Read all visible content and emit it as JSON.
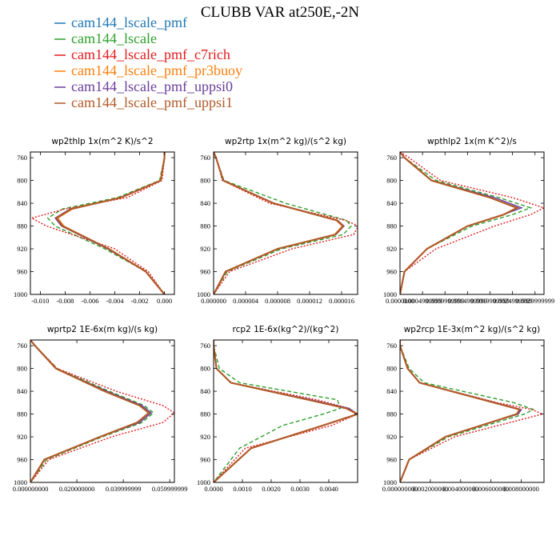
{
  "figure": {
    "title": "CLUBB VAR at250E,-2N"
  },
  "legend": [
    {
      "name": "cam144_lscale_pmf",
      "color": "#1f77b4",
      "dash": "solid"
    },
    {
      "name": "cam144_lscale",
      "color": "#2ca02c",
      "dash": "dashed"
    },
    {
      "name": "cam144_lscale_pmf_c7rich",
      "color": "#e31a1c",
      "dash": "dotted"
    },
    {
      "name": "cam144_lscale_pmf_pr3buoy",
      "color": "#ff7f0e",
      "dash": "solid"
    },
    {
      "name": "cam144_lscale_pmf_uppsi0",
      "color": "#6a3d9a",
      "dash": "solid"
    },
    {
      "name": "cam144_lscale_pmf_uppsi1",
      "color": "#b15928",
      "dash": "solid"
    }
  ],
  "chart_data": [
    {
      "type": "line",
      "title": "wp2thlp  1x(m^2 K)/s^2",
      "ylim": [
        1000,
        750
      ],
      "yticks": [
        "760",
        "800",
        "840",
        "880",
        "920",
        "960",
        "1000"
      ],
      "xlim": [
        -0.0108,
        0.0008
      ],
      "xticks": [
        "-0.010",
        "-0.008",
        "-0.006",
        "-0.004",
        "-0.002",
        "0.000"
      ],
      "levels": [
        750,
        760,
        800,
        830,
        850,
        866,
        880,
        920,
        960,
        1000
      ],
      "series": [
        {
          "name": "cam144_lscale_pmf",
          "values": [
            0.0,
            0.0,
            -0.0003,
            -0.0035,
            -0.0075,
            -0.0087,
            -0.0082,
            -0.0045,
            -0.0015,
            0.0
          ]
        },
        {
          "name": "cam144_lscale",
          "values": [
            0.0,
            0.0,
            -0.0004,
            -0.0038,
            -0.0082,
            -0.0094,
            -0.0088,
            -0.0048,
            -0.0015,
            0.0
          ]
        },
        {
          "name": "cam144_lscale_pmf_c7rich",
          "values": [
            0.0,
            0.0,
            -0.0002,
            -0.003,
            -0.008,
            -0.0107,
            -0.0095,
            -0.004,
            -0.0013,
            0.0
          ]
        },
        {
          "name": "cam144_lscale_pmf_pr3buoy",
          "values": [
            0.0,
            0.0,
            -0.0003,
            -0.0035,
            -0.0074,
            -0.0086,
            -0.0081,
            -0.0045,
            -0.0015,
            0.0
          ]
        },
        {
          "name": "cam144_lscale_pmf_uppsi0",
          "values": [
            0.0,
            0.0,
            -0.0003,
            -0.0036,
            -0.0076,
            -0.0088,
            -0.0083,
            -0.0046,
            -0.0015,
            0.0
          ]
        },
        {
          "name": "cam144_lscale_pmf_uppsi1",
          "values": [
            0.0,
            0.0,
            -0.0003,
            -0.0035,
            -0.0075,
            -0.0087,
            -0.0082,
            -0.0045,
            -0.0015,
            0.0
          ]
        }
      ]
    },
    {
      "type": "line",
      "title": "wp2rtp  1x(m^2 kg)/(s^2 kg)",
      "ylim": [
        1000,
        750
      ],
      "yticks": [
        "760",
        "800",
        "840",
        "880",
        "920",
        "960",
        "1000"
      ],
      "xlim": [
        0.0,
        1.8e-05
      ],
      "xticks": [
        "0.000000",
        "0.000004",
        "0.000008",
        "0.000012",
        "0.000016"
      ],
      "levels": [
        750,
        760,
        800,
        840,
        870,
        880,
        895,
        920,
        960,
        1000
      ],
      "series": [
        {
          "name": "cam144_lscale_pmf",
          "values": [
            0.0,
            3e-07,
            1.2e-06,
            7.5e-06,
            1.54e-05,
            1.62e-05,
            1.52e-05,
            8e-06,
            1.5e-06,
            0.0
          ]
        },
        {
          "name": "cam144_lscale",
          "values": [
            0.0,
            3e-07,
            1.3e-06,
            9e-06,
            1.66e-05,
            1.72e-05,
            1.62e-05,
            8.5e-06,
            1.7e-06,
            0.0
          ]
        },
        {
          "name": "cam144_lscale_pmf_c7rich",
          "values": [
            0.0,
            3e-07,
            1.1e-06,
            7e-06,
            1.65e-05,
            1.81e-05,
            1.75e-05,
            9.8e-06,
            2e-06,
            0.0
          ]
        },
        {
          "name": "cam144_lscale_pmf_pr3buoy",
          "values": [
            0.0,
            3e-07,
            1.2e-06,
            7.5e-06,
            1.53e-05,
            1.61e-05,
            1.51e-05,
            8e-06,
            1.5e-06,
            0.0
          ]
        },
        {
          "name": "cam144_lscale_pmf_uppsi0",
          "values": [
            0.0,
            3e-07,
            1.2e-06,
            7.6e-06,
            1.55e-05,
            1.63e-05,
            1.53e-05,
            8e-06,
            1.5e-06,
            0.0
          ]
        },
        {
          "name": "cam144_lscale_pmf_uppsi1",
          "values": [
            0.0,
            3e-07,
            1.2e-06,
            7.5e-06,
            1.54e-05,
            1.62e-05,
            1.52e-05,
            8e-06,
            1.5e-06,
            0.0
          ]
        }
      ]
    },
    {
      "type": "line",
      "title": "wpthlp2  1x(m K^2)/s",
      "ylim": [
        1000,
        750
      ],
      "yticks": [
        "760",
        "800",
        "840",
        "880",
        "920",
        "960",
        "1000"
      ],
      "xlim": [
        0.0,
        0.0032
      ],
      "xticks": [
        "0.0000000",
        "0.0004999999",
        "0.0009999999",
        "0.0014999999",
        "0.0019999999",
        "0.0024999999",
        "0.0029999999"
      ],
      "levels": [
        750,
        760,
        800,
        830,
        848,
        860,
        880,
        920,
        960,
        1000
      ],
      "series": [
        {
          "name": "cam144_lscale_pmf",
          "values": [
            0.0,
            0.0001,
            0.0007,
            0.002,
            0.0026,
            0.0023,
            0.0015,
            0.0006,
            0.0001,
            0.0
          ]
        },
        {
          "name": "cam144_lscale",
          "values": [
            0.0,
            0.0001,
            0.0008,
            0.0022,
            0.0029,
            0.0025,
            0.0016,
            0.0006,
            0.0001,
            0.0
          ]
        },
        {
          "name": "cam144_lscale_pmf_c7rich",
          "values": [
            0.0,
            0.0002,
            0.0009,
            0.0025,
            0.0032,
            0.0029,
            0.0021,
            0.0008,
            0.0001,
            0.0
          ]
        },
        {
          "name": "cam144_lscale_pmf_pr3buoy",
          "values": [
            0.0,
            0.0001,
            0.0007,
            0.002,
            0.0026,
            0.0023,
            0.0015,
            0.0006,
            0.0001,
            0.0
          ]
        },
        {
          "name": "cam144_lscale_pmf_uppsi0",
          "values": [
            0.0,
            0.0001,
            0.0007,
            0.0021,
            0.0027,
            0.0023,
            0.0015,
            0.0006,
            0.0001,
            0.0
          ]
        },
        {
          "name": "cam144_lscale_pmf_uppsi1",
          "values": [
            0.0,
            0.0001,
            0.0007,
            0.002,
            0.0026,
            0.0023,
            0.0015,
            0.0006,
            0.0001,
            0.0
          ]
        }
      ]
    },
    {
      "type": "line",
      "title": "wprtp2  1E-6x(m kg)/(s kg)",
      "ylim": [
        1000,
        750
      ],
      "yticks": [
        "760",
        "800",
        "840",
        "880",
        "920",
        "960",
        "1000"
      ],
      "xlim": [
        0.0,
        0.062
      ],
      "xticks": [
        "0.000000000",
        "0.020000000",
        "0.039999999",
        "0.059999999"
      ],
      "levels": [
        750,
        760,
        800,
        840,
        865,
        878,
        895,
        920,
        960,
        1000
      ],
      "series": [
        {
          "name": "cam144_lscale_pmf",
          "values": [
            0.0,
            0.002,
            0.011,
            0.032,
            0.047,
            0.051,
            0.046,
            0.03,
            0.006,
            0.0
          ]
        },
        {
          "name": "cam144_lscale",
          "values": [
            0.0,
            0.002,
            0.0115,
            0.034,
            0.049,
            0.053,
            0.048,
            0.031,
            0.007,
            0.0
          ]
        },
        {
          "name": "cam144_lscale_pmf_c7rich",
          "values": [
            0.0,
            0.002,
            0.0115,
            0.037,
            0.057,
            0.062,
            0.057,
            0.035,
            0.008,
            0.0
          ]
        },
        {
          "name": "cam144_lscale_pmf_pr3buoy",
          "values": [
            0.0,
            0.002,
            0.011,
            0.032,
            0.047,
            0.051,
            0.046,
            0.03,
            0.006,
            0.0
          ]
        },
        {
          "name": "cam144_lscale_pmf_uppsi0",
          "values": [
            0.0,
            0.002,
            0.011,
            0.033,
            0.048,
            0.052,
            0.047,
            0.03,
            0.006,
            0.0
          ]
        },
        {
          "name": "cam144_lscale_pmf_uppsi1",
          "values": [
            0.0,
            0.002,
            0.011,
            0.032,
            0.047,
            0.051,
            0.046,
            0.03,
            0.006,
            0.0
          ]
        }
      ]
    },
    {
      "type": "line",
      "title": "rcp2  1E-6x(kg^2)/(kg^2)",
      "ylim": [
        1000,
        750
      ],
      "yticks": [
        "760",
        "800",
        "840",
        "880",
        "920",
        "960",
        "1000"
      ],
      "xlim": [
        0.0,
        0.005
      ],
      "xticks": [
        "0.0000",
        "0.0010",
        "0.0020",
        "0.0030",
        "0.0040"
      ],
      "levels": [
        750,
        760,
        800,
        825,
        855,
        870,
        880,
        900,
        940,
        1000
      ],
      "series": [
        {
          "name": "cam144_lscale_pmf",
          "values": [
            0.0,
            0.0,
            0.0001,
            0.0006,
            0.0033,
            0.0046,
            0.005,
            0.0038,
            0.0013,
            0.0
          ]
        },
        {
          "name": "cam144_lscale",
          "values": [
            0.0,
            0.0,
            0.0002,
            0.0009,
            0.0043,
            0.0044,
            0.0038,
            0.0024,
            0.0009,
            0.0
          ]
        },
        {
          "name": "cam144_lscale_pmf_c7rich",
          "values": [
            0.0,
            0.0,
            0.0001,
            0.0006,
            0.0036,
            0.0047,
            0.005,
            0.0041,
            0.0011,
            0.0
          ]
        },
        {
          "name": "cam144_lscale_pmf_pr3buoy",
          "values": [
            0.0,
            0.0,
            0.0001,
            0.0006,
            0.0033,
            0.0046,
            0.005,
            0.0038,
            0.0013,
            0.0
          ]
        },
        {
          "name": "cam144_lscale_pmf_uppsi0",
          "values": [
            0.0,
            0.0,
            0.0001,
            0.0006,
            0.0034,
            0.0047,
            0.005,
            0.0038,
            0.0013,
            0.0
          ]
        },
        {
          "name": "cam144_lscale_pmf_uppsi1",
          "values": [
            0.0,
            0.0,
            0.0001,
            0.0006,
            0.0033,
            0.0046,
            0.005,
            0.0038,
            0.0013,
            0.0
          ]
        }
      ]
    },
    {
      "type": "line",
      "title": "wp2rcp  1E-3x(m^2 kg)/(s^2 kg)",
      "ylim": [
        1000,
        750
      ],
      "yticks": [
        "760",
        "800",
        "840",
        "880",
        "920",
        "960",
        "1000"
      ],
      "xlim": [
        0.0,
        0.0095
      ],
      "xticks": [
        "0.000000000",
        "0.002000000",
        "0.004000000",
        "0.006000000",
        "0.008000000"
      ],
      "levels": [
        750,
        760,
        800,
        825,
        860,
        872,
        880,
        920,
        960,
        1000
      ],
      "series": [
        {
          "name": "cam144_lscale_pmf",
          "values": [
            0.0,
            0.0,
            0.0005,
            0.0013,
            0.0062,
            0.0079,
            0.0077,
            0.003,
            0.0006,
            0.0
          ]
        },
        {
          "name": "cam144_lscale",
          "values": [
            0.0,
            0.0,
            0.0006,
            0.0016,
            0.0075,
            0.0088,
            0.0082,
            0.0032,
            0.0006,
            0.0
          ]
        },
        {
          "name": "cam144_lscale_pmf_c7rich",
          "values": [
            0.0,
            0.0,
            0.0005,
            0.0013,
            0.0064,
            0.0087,
            0.0094,
            0.0036,
            0.0006,
            0.0
          ]
        },
        {
          "name": "cam144_lscale_pmf_pr3buoy",
          "values": [
            0.0,
            0.0,
            0.0005,
            0.0013,
            0.0062,
            0.0079,
            0.0077,
            0.003,
            0.0006,
            0.0
          ]
        },
        {
          "name": "cam144_lscale_pmf_uppsi0",
          "values": [
            0.0,
            0.0,
            0.0005,
            0.0013,
            0.0063,
            0.008,
            0.0078,
            0.003,
            0.0006,
            0.0
          ]
        },
        {
          "name": "cam144_lscale_pmf_uppsi1",
          "values": [
            0.0,
            0.0,
            0.0005,
            0.0013,
            0.0062,
            0.0079,
            0.0077,
            0.003,
            0.0006,
            0.0
          ]
        }
      ]
    }
  ]
}
